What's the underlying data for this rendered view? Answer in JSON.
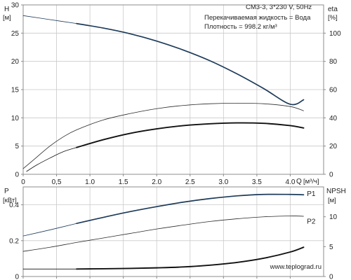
{
  "colors": {
    "frame": "#8c8c8c",
    "grid": "#c9c9c9",
    "text": "#222222",
    "head_curve": "#1e3b5a",
    "thin_curve": "#2a2a2a",
    "thick_curve": "#111111",
    "watermark": "#b0b0b0"
  },
  "watermark": "www.teplograd.ru",
  "chart_data": [
    {
      "type": "line",
      "info": {
        "pump": "CM3-3, 3*230 V, 50Hz",
        "liquid": "Перекачиваемая жидкость = Вода",
        "density": "Плотность = 998.2 кг/м³"
      },
      "xaxis": {
        "label": "Q",
        "unit": "[м³/ч]",
        "range": [
          0,
          4.5
        ],
        "ticks": [
          0,
          0.5,
          1,
          1.5,
          2,
          2.5,
          3,
          3.5,
          4
        ],
        "tick_labels": [
          "0",
          "0,5",
          "1.0",
          "1.5",
          "2.0",
          "2.5",
          "3.0",
          "3.5",
          "4.0"
        ]
      },
      "yaxis_left": {
        "label": "H",
        "unit": "[м]",
        "range": [
          0,
          30
        ],
        "ticks": [
          0,
          5,
          10,
          15,
          20,
          25,
          30
        ],
        "tick_labels": [
          "0",
          "5",
          "10",
          "15",
          "20",
          "25",
          "30"
        ]
      },
      "yaxis_right": {
        "label": "eta",
        "unit": "[%]",
        "range": [
          0,
          120
        ],
        "ticks": [
          0,
          20,
          40,
          60,
          80,
          100
        ],
        "tick_labels": [
          "0",
          "20",
          "40",
          "60",
          "80",
          "100"
        ]
      },
      "grid": true,
      "series": [
        {
          "id": "head",
          "axis": "left",
          "style": "head",
          "thin_points": [
            [
              0,
              28.1
            ],
            [
              0.4,
              27.4
            ],
            [
              0.8,
              26.7
            ]
          ],
          "points": [
            [
              0.8,
              26.7
            ],
            [
              1.2,
              25.9
            ],
            [
              1.6,
              24.9
            ],
            [
              2.0,
              23.6
            ],
            [
              2.4,
              22.0
            ],
            [
              2.8,
              20.1
            ],
            [
              3.2,
              17.8
            ],
            [
              3.6,
              15.2
            ],
            [
              4.0,
              12.4
            ],
            [
              4.2,
              13.2
            ]
          ]
        },
        {
          "id": "efficiency",
          "axis": "right",
          "style": "thin",
          "points": [
            [
              0,
              4
            ],
            [
              0.2,
              12
            ],
            [
              0.4,
              20
            ],
            [
              0.6,
              26.5
            ],
            [
              0.8,
              31.5
            ],
            [
              1.2,
              38.5
            ],
            [
              1.6,
              43
            ],
            [
              2.0,
              46.5
            ],
            [
              2.4,
              48.8
            ],
            [
              2.8,
              50
            ],
            [
              3.2,
              50.4
            ],
            [
              3.6,
              50
            ],
            [
              4.0,
              48
            ],
            [
              4.2,
              45
            ]
          ]
        },
        {
          "id": "efficiency_total",
          "axis": "right",
          "style": "thick",
          "thin_points": [
            [
              0.05,
              2
            ],
            [
              0.2,
              6.5
            ],
            [
              0.4,
              11.5
            ],
            [
              0.6,
              16
            ],
            [
              0.8,
              19
            ]
          ],
          "points": [
            [
              0.8,
              19
            ],
            [
              1.2,
              24.5
            ],
            [
              1.6,
              29
            ],
            [
              2.0,
              32.2
            ],
            [
              2.4,
              34.5
            ],
            [
              2.8,
              35.8
            ],
            [
              3.2,
              36.4
            ],
            [
              3.6,
              36.1
            ],
            [
              4.0,
              34.5
            ],
            [
              4.2,
              32.8
            ]
          ]
        }
      ]
    },
    {
      "type": "line",
      "xaxis": {
        "range": [
          0,
          4.5
        ],
        "ticks": [
          0,
          0.5,
          1,
          1.5,
          2,
          2.5,
          3,
          3.5,
          4
        ]
      },
      "yaxis_left": {
        "label": "P",
        "unit": "[кВт]",
        "range": [
          0,
          0.5
        ],
        "ticks": [
          0,
          0.2,
          0.4
        ],
        "tick_labels": [
          "0",
          "0.2",
          "0.4"
        ]
      },
      "yaxis_right": {
        "label": "NPSH",
        "unit": "[м]",
        "range": [
          0,
          15
        ],
        "ticks": [
          0,
          5,
          10
        ],
        "tick_labels": [
          "0",
          "5",
          "10"
        ]
      },
      "grid": true,
      "series": [
        {
          "id": "p1",
          "name": "P1",
          "axis": "left",
          "style": "head",
          "label_at": [
            4.25,
            0.462
          ],
          "thin_points": [
            [
              0,
              0.226
            ],
            [
              0.4,
              0.26
            ],
            [
              0.8,
              0.296
            ]
          ],
          "points": [
            [
              0.8,
              0.296
            ],
            [
              1.2,
              0.33
            ],
            [
              1.6,
              0.362
            ],
            [
              2.0,
              0.39
            ],
            [
              2.4,
              0.415
            ],
            [
              2.8,
              0.435
            ],
            [
              3.2,
              0.45
            ],
            [
              3.6,
              0.458
            ],
            [
              4.0,
              0.458
            ],
            [
              4.2,
              0.456
            ]
          ]
        },
        {
          "id": "p2",
          "name": "P2",
          "axis": "left",
          "style": "thin",
          "label_at": [
            4.25,
            0.308
          ],
          "points": [
            [
              0,
              0.14
            ],
            [
              0.4,
              0.163
            ],
            [
              0.8,
              0.19
            ],
            [
              1.2,
              0.215
            ],
            [
              1.6,
              0.24
            ],
            [
              2.0,
              0.265
            ],
            [
              2.4,
              0.287
            ],
            [
              2.8,
              0.307
            ],
            [
              3.2,
              0.322
            ],
            [
              3.6,
              0.333
            ],
            [
              4.0,
              0.338
            ],
            [
              4.2,
              0.336
            ]
          ]
        },
        {
          "id": "npsh",
          "axis": "right",
          "style": "thick",
          "thin_points": [
            [
              0,
              1.25
            ],
            [
              0.4,
              1.25
            ],
            [
              0.8,
              1.25
            ]
          ],
          "points": [
            [
              0.8,
              1.25
            ],
            [
              1.2,
              1.3
            ],
            [
              1.6,
              1.35
            ],
            [
              2.0,
              1.45
            ],
            [
              2.4,
              1.6
            ],
            [
              2.8,
              1.9
            ],
            [
              3.2,
              2.35
            ],
            [
              3.6,
              3.05
            ],
            [
              4.0,
              4.1
            ],
            [
              4.2,
              4.9
            ]
          ]
        }
      ]
    }
  ]
}
